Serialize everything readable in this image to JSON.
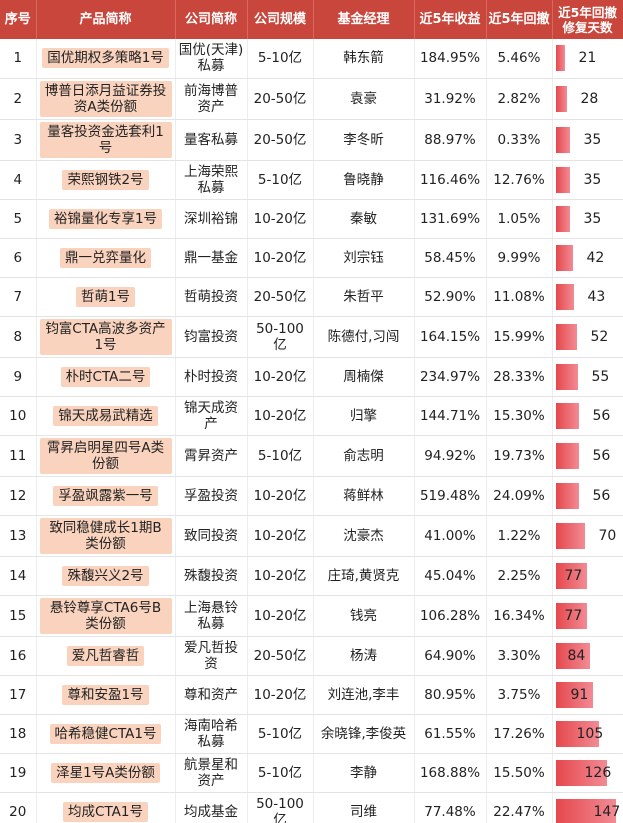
{
  "headers": [
    "序号",
    "产品简称",
    "公司简称",
    "公司规模",
    "基金经理",
    "近5年收益",
    "近5年回撤",
    "近5年回撤修复天数"
  ],
  "max_days": 147,
  "rows": [
    {
      "no": "1",
      "product": "国优期权多策略1号",
      "company": "国优(天津)私募",
      "scale": "5-10亿",
      "manager": "韩东箭",
      "ret": "184.95%",
      "dd": "5.46%",
      "days": "21"
    },
    {
      "no": "2",
      "product": "博普日添月益证券投资A类份额",
      "company": "前海博普资产",
      "scale": "20-50亿",
      "manager": "袁豪",
      "ret": "31.92%",
      "dd": "2.82%",
      "days": "28"
    },
    {
      "no": "3",
      "product": "量客投资金选套利1号",
      "company": "量客私募",
      "scale": "20-50亿",
      "manager": "李冬昕",
      "ret": "88.97%",
      "dd": "0.33%",
      "days": "35"
    },
    {
      "no": "4",
      "product": "荣熙钢铁2号",
      "company": "上海荣熙私募",
      "scale": "5-10亿",
      "manager": "鲁晓静",
      "ret": "116.46%",
      "dd": "12.76%",
      "days": "35"
    },
    {
      "no": "5",
      "product": "裕锦量化专享1号",
      "company": "深圳裕锦",
      "scale": "10-20亿",
      "manager": "秦敏",
      "ret": "131.69%",
      "dd": "1.05%",
      "days": "35"
    },
    {
      "no": "6",
      "product": "鼎一兑弈量化",
      "company": "鼎一基金",
      "scale": "10-20亿",
      "manager": "刘宗钰",
      "ret": "58.45%",
      "dd": "9.99%",
      "days": "42"
    },
    {
      "no": "7",
      "product": "哲萌1号",
      "company": "哲萌投资",
      "scale": "20-50亿",
      "manager": "朱哲平",
      "ret": "52.90%",
      "dd": "11.08%",
      "days": "43"
    },
    {
      "no": "8",
      "product": "钧富CTA高波多资产1号",
      "company": "钧富投资",
      "scale": "50-100亿",
      "manager": "陈德付,习闯",
      "ret": "164.15%",
      "dd": "15.99%",
      "days": "52"
    },
    {
      "no": "9",
      "product": "朴时CTA二号",
      "company": "朴时投资",
      "scale": "10-20亿",
      "manager": "周楠傑",
      "ret": "234.97%",
      "dd": "28.33%",
      "days": "55"
    },
    {
      "no": "10",
      "product": "锦天成易武精选",
      "company": "锦天成资产",
      "scale": "10-20亿",
      "manager": "归擎",
      "ret": "144.71%",
      "dd": "15.30%",
      "days": "56"
    },
    {
      "no": "11",
      "product": "霄昇启明星四号A类份额",
      "company": "霄昇资产",
      "scale": "5-10亿",
      "manager": "俞志明",
      "ret": "94.92%",
      "dd": "19.73%",
      "days": "56"
    },
    {
      "no": "12",
      "product": "孚盈飒露紫一号",
      "company": "孚盈投资",
      "scale": "10-20亿",
      "manager": "蒋鲜林",
      "ret": "519.48%",
      "dd": "24.09%",
      "days": "56"
    },
    {
      "no": "13",
      "product": "致同稳健成长1期B类份额",
      "company": "致同投资",
      "scale": "10-20亿",
      "manager": "沈豪杰",
      "ret": "41.00%",
      "dd": "1.22%",
      "days": "70"
    },
    {
      "no": "14",
      "product": "殊馥兴义2号",
      "company": "殊馥投资",
      "scale": "10-20亿",
      "manager": "庄琦,黄贤克",
      "ret": "45.04%",
      "dd": "2.25%",
      "days": "77"
    },
    {
      "no": "15",
      "product": "悬铃尊享CTA6号B类份额",
      "company": "上海悬铃私募",
      "scale": "10-20亿",
      "manager": "钱亮",
      "ret": "106.28%",
      "dd": "16.34%",
      "days": "77"
    },
    {
      "no": "16",
      "product": "爱凡哲睿哲",
      "company": "爱凡哲投资",
      "scale": "20-50亿",
      "manager": "杨涛",
      "ret": "64.90%",
      "dd": "3.30%",
      "days": "84"
    },
    {
      "no": "17",
      "product": "尊和安盈1号",
      "company": "尊和资产",
      "scale": "10-20亿",
      "manager": "刘连池,李丰",
      "ret": "80.95%",
      "dd": "3.75%",
      "days": "91"
    },
    {
      "no": "18",
      "product": "哈希稳健CTA1号",
      "company": "海南哈希私募",
      "scale": "5-10亿",
      "manager": "余晓锋,李俊英",
      "ret": "61.55%",
      "dd": "17.26%",
      "days": "105"
    },
    {
      "no": "19",
      "product": "泽星1号A类份额",
      "company": "航景星和资产",
      "scale": "5-10亿",
      "manager": "李静",
      "ret": "168.88%",
      "dd": "15.50%",
      "days": "126"
    },
    {
      "no": "20",
      "product": "均成CTA1号",
      "company": "均成基金",
      "scale": "50-100亿",
      "manager": "司维",
      "ret": "77.48%",
      "dd": "22.47%",
      "days": "147"
    }
  ]
}
